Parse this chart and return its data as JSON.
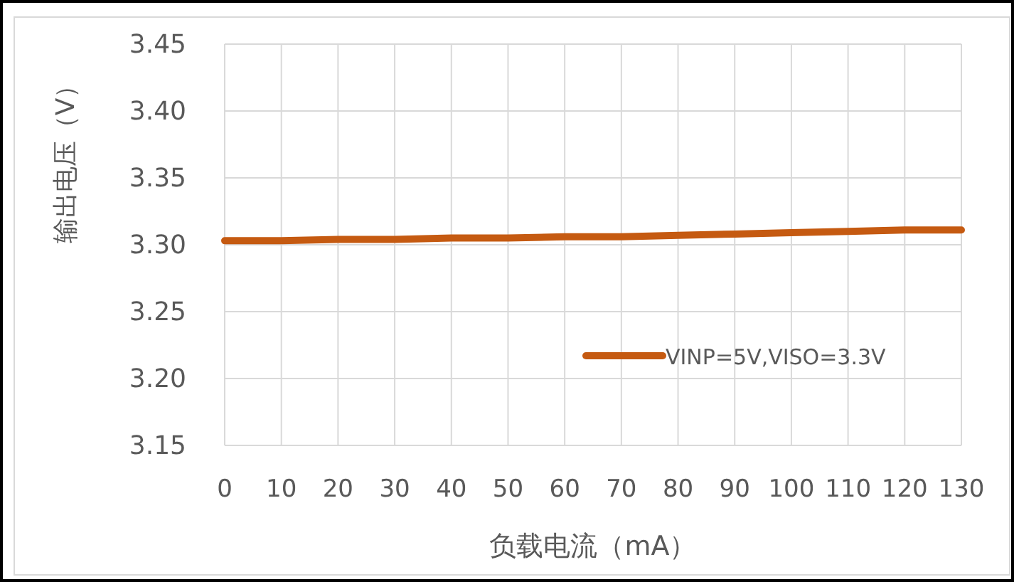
{
  "chart_data": {
    "type": "line",
    "xlabel": "负载电流（mA）",
    "ylabel": "输出电压（V）",
    "x": [
      0,
      10,
      20,
      30,
      40,
      50,
      60,
      70,
      80,
      90,
      100,
      110,
      120,
      130
    ],
    "series": [
      {
        "name": "VINP=5V,VISO=3.3V",
        "color": "#c55a11",
        "values": [
          3.303,
          3.303,
          3.304,
          3.304,
          3.305,
          3.305,
          3.306,
          3.306,
          3.307,
          3.308,
          3.309,
          3.31,
          3.311,
          3.311
        ]
      }
    ],
    "xlim": [
      0,
      130
    ],
    "xticks": [
      0,
      10,
      20,
      30,
      40,
      50,
      60,
      70,
      80,
      90,
      100,
      110,
      120,
      130
    ],
    "ylim": [
      3.15,
      3.45
    ],
    "yticks": [
      {
        "value": 3.15,
        "label": "3.15"
      },
      {
        "value": 3.2,
        "label": "3.20"
      },
      {
        "value": 3.25,
        "label": "3.25"
      },
      {
        "value": 3.3,
        "label": "3.30"
      },
      {
        "value": 3.35,
        "label": "3.35"
      },
      {
        "value": 3.4,
        "label": "3.40"
      },
      {
        "value": 3.45,
        "label": "3.45"
      }
    ],
    "grid": true,
    "legend": "right",
    "marker": "none",
    "line_style": "solid"
  }
}
